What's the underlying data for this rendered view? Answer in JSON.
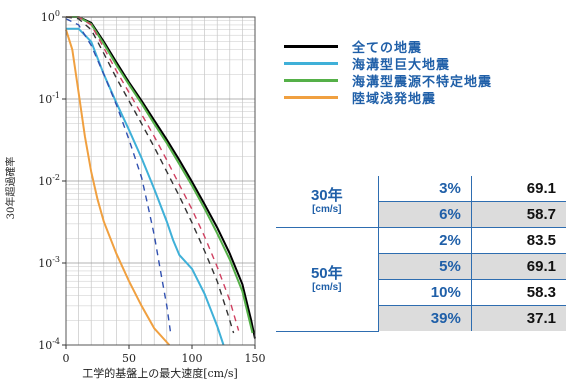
{
  "chart_data": {
    "type": "line",
    "xlabel": "工学的基盤上の最大速度[cm/s]",
    "ylabel": "30年超過確率",
    "xlim": [
      0,
      150
    ],
    "ylim": [
      0.0001,
      1
    ],
    "yscale": "log",
    "grid": true,
    "x_ticks": [
      "0",
      "50",
      "100",
      "150"
    ],
    "y_ticks": [
      {
        "base": "10",
        "exp": "0",
        "value": 1
      },
      {
        "base": "10",
        "exp": "-1",
        "value": 0.1
      },
      {
        "base": "10",
        "exp": "-2",
        "value": 0.01
      },
      {
        "base": "10",
        "exp": "-3",
        "value": 0.001
      },
      {
        "base": "10",
        "exp": "-4",
        "value": 0.0001
      }
    ],
    "legend_position": "right",
    "series": [
      {
        "name": "全ての地震",
        "color": "#000000",
        "dash": "solid",
        "points": [
          [
            0,
            1
          ],
          [
            10,
            1
          ],
          [
            20,
            0.85
          ],
          [
            30,
            0.5
          ],
          [
            40,
            0.28
          ],
          [
            50,
            0.16
          ],
          [
            60,
            0.095
          ],
          [
            70,
            0.055
          ],
          [
            80,
            0.032
          ],
          [
            90,
            0.018
          ],
          [
            100,
            0.0098
          ],
          [
            110,
            0.0052
          ],
          [
            120,
            0.0027
          ],
          [
            130,
            0.0013
          ],
          [
            140,
            0.00055
          ],
          [
            147,
            0.0002
          ],
          [
            150,
            0.00012
          ]
        ]
      },
      {
        "name": "海溝型巨大地震",
        "color": "#3fb0d8",
        "dash": "solid",
        "points": [
          [
            0,
            0.72
          ],
          [
            10,
            0.72
          ],
          [
            20,
            0.5
          ],
          [
            30,
            0.2
          ],
          [
            40,
            0.09
          ],
          [
            50,
            0.042
          ],
          [
            60,
            0.019
          ],
          [
            70,
            0.008
          ],
          [
            80,
            0.0032
          ],
          [
            85,
            0.0019
          ],
          [
            90,
            0.00125
          ],
          [
            100,
            0.00085
          ],
          [
            110,
            0.00042
          ],
          [
            120,
            0.00017
          ],
          [
            125,
            0.0001
          ]
        ]
      },
      {
        "name": "海溝型震源不特定地震",
        "color": "#55b048",
        "dash": "solid",
        "points": [
          [
            0,
            1
          ],
          [
            10,
            1
          ],
          [
            20,
            0.82
          ],
          [
            30,
            0.47
          ],
          [
            40,
            0.26
          ],
          [
            50,
            0.15
          ],
          [
            60,
            0.088
          ],
          [
            70,
            0.05
          ],
          [
            80,
            0.029
          ],
          [
            90,
            0.016
          ],
          [
            100,
            0.0088
          ],
          [
            110,
            0.0046
          ],
          [
            120,
            0.0023
          ],
          [
            130,
            0.0011
          ],
          [
            140,
            0.00045
          ],
          [
            148,
            0.00014
          ]
        ]
      },
      {
        "name": "陸域浅発地震",
        "color": "#f0a040",
        "dash": "solid",
        "points": [
          [
            0,
            0.7
          ],
          [
            5,
            0.4
          ],
          [
            10,
            0.12
          ],
          [
            15,
            0.035
          ],
          [
            20,
            0.013
          ],
          [
            25,
            0.006
          ],
          [
            30,
            0.0032
          ],
          [
            40,
            0.0013
          ],
          [
            50,
            0.0006
          ],
          [
            60,
            0.0003
          ],
          [
            70,
            0.00016
          ],
          [
            82,
            0.0001
          ]
        ]
      },
      {
        "name": "",
        "color": "#d04060",
        "dash": "dashed",
        "points": [
          [
            0,
            1
          ],
          [
            10,
            1
          ],
          [
            20,
            0.8
          ],
          [
            30,
            0.42
          ],
          [
            40,
            0.22
          ],
          [
            50,
            0.12
          ],
          [
            60,
            0.065
          ],
          [
            70,
            0.035
          ],
          [
            80,
            0.018
          ],
          [
            90,
            0.009
          ],
          [
            100,
            0.0045
          ],
          [
            110,
            0.0021
          ],
          [
            120,
            0.0009
          ],
          [
            130,
            0.00035
          ],
          [
            137,
            0.00015
          ]
        ]
      },
      {
        "name": "",
        "color": "#333333",
        "dash": "dashed",
        "points": [
          [
            0,
            1
          ],
          [
            10,
            0.95
          ],
          [
            20,
            0.7
          ],
          [
            30,
            0.36
          ],
          [
            40,
            0.18
          ],
          [
            50,
            0.095
          ],
          [
            60,
            0.05
          ],
          [
            70,
            0.026
          ],
          [
            80,
            0.013
          ],
          [
            90,
            0.0065
          ],
          [
            100,
            0.0031
          ],
          [
            110,
            0.0014
          ],
          [
            120,
            0.0006
          ],
          [
            128,
            0.00025
          ],
          [
            133,
            0.00014
          ]
        ]
      },
      {
        "name": "",
        "color": "#3050b0",
        "dash": "dashed",
        "points": [
          [
            0,
            0.95
          ],
          [
            10,
            0.8
          ],
          [
            20,
            0.45
          ],
          [
            30,
            0.2
          ],
          [
            40,
            0.085
          ],
          [
            50,
            0.032
          ],
          [
            60,
            0.011
          ],
          [
            65,
            0.005
          ],
          [
            70,
            0.0022
          ],
          [
            75,
            0.0008
          ],
          [
            80,
            0.0003
          ],
          [
            83,
            0.00014
          ]
        ]
      }
    ]
  },
  "legend": [
    {
      "label": "全ての地震",
      "color": "#000000"
    },
    {
      "label": "海溝型巨大地震",
      "color": "#3fb0d8"
    },
    {
      "label": "海溝型震源不特定地震",
      "color": "#55b048"
    },
    {
      "label": "陸域浅発地震",
      "color": "#f0a040"
    }
  ],
  "stats_table": {
    "groups": [
      {
        "period": "30年",
        "unit": "[cm/s]",
        "rows": [
          {
            "pct": "3%",
            "value": "69.1"
          },
          {
            "pct": "6%",
            "value": "58.7"
          }
        ]
      },
      {
        "period": "50年",
        "unit": "[cm/s]",
        "rows": [
          {
            "pct": "2%",
            "value": "83.5"
          },
          {
            "pct": "5%",
            "value": "69.1"
          },
          {
            "pct": "10%",
            "value": "58.3"
          },
          {
            "pct": "39%",
            "value": "37.1"
          }
        ]
      }
    ]
  }
}
